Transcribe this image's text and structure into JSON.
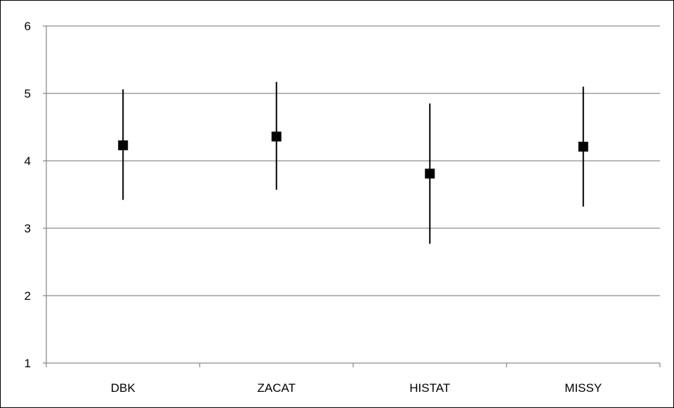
{
  "chart_data": {
    "type": "scatter",
    "title": "",
    "xlabel": "",
    "ylabel": "",
    "categories": [
      "DBK",
      "ZACAT",
      "HISTAT",
      "MISSY"
    ],
    "values": [
      4.23,
      4.36,
      3.81,
      4.21
    ],
    "error_low": [
      3.42,
      3.57,
      2.77,
      3.32
    ],
    "error_high": [
      5.06,
      5.17,
      4.85,
      5.1
    ],
    "ylim": [
      1,
      6
    ],
    "yticks": [
      1,
      2,
      3,
      4,
      5,
      6
    ],
    "grid": true,
    "legend": "none",
    "colors": {
      "marker": "#000000",
      "error_bar": "#000000",
      "grid": "#8c8c8c",
      "axis": "#8c8c8c"
    }
  }
}
